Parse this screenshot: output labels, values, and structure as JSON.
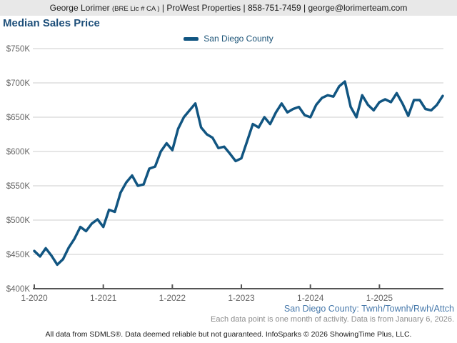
{
  "header": {
    "agent_name": "George Lorimer",
    "license": "(BRE Lic # CA )",
    "contact": "| ProWest Properties | 858-751-7459 | george@lorimerteam.com"
  },
  "title": "Median Sales Price",
  "legend": {
    "label": "San Diego County"
  },
  "chart_data": {
    "type": "line",
    "title": "Median Sales Price",
    "unit": "USD thousands",
    "ylim": [
      400,
      750
    ],
    "grid": "horizontal",
    "legend_position": "top-center",
    "x": [
      "1-2020",
      "2-2020",
      "3-2020",
      "4-2020",
      "5-2020",
      "6-2020",
      "7-2020",
      "8-2020",
      "9-2020",
      "10-2020",
      "11-2020",
      "12-2020",
      "1-2021",
      "2-2021",
      "3-2021",
      "4-2021",
      "5-2021",
      "6-2021",
      "7-2021",
      "8-2021",
      "9-2021",
      "10-2021",
      "11-2021",
      "12-2021",
      "1-2022",
      "2-2022",
      "3-2022",
      "4-2022",
      "5-2022",
      "6-2022",
      "7-2022",
      "8-2022",
      "9-2022",
      "10-2022",
      "11-2022",
      "12-2022",
      "1-2023",
      "2-2023",
      "3-2023",
      "4-2023",
      "5-2023",
      "6-2023",
      "7-2023",
      "8-2023",
      "9-2023",
      "10-2023",
      "11-2023",
      "12-2023",
      "1-2024",
      "2-2024",
      "3-2024",
      "4-2024",
      "5-2024",
      "6-2024",
      "7-2024",
      "8-2024",
      "9-2024",
      "10-2024",
      "11-2024",
      "12-2024",
      "1-2025",
      "2-2025",
      "3-2025",
      "4-2025",
      "5-2025",
      "6-2025",
      "7-2025",
      "8-2025",
      "9-2025",
      "10-2025",
      "11-2025",
      "12-2025"
    ],
    "series": [
      {
        "name": "San Diego County",
        "color": "#115581",
        "values": [
          455,
          447,
          459,
          448,
          435,
          443,
          460,
          473,
          490,
          484,
          495,
          501,
          490,
          515,
          512,
          540,
          555,
          565,
          550,
          552,
          575,
          578,
          600,
          612,
          602,
          633,
          650,
          660,
          670,
          635,
          625,
          620,
          605,
          607,
          597,
          586,
          590,
          615,
          640,
          635,
          650,
          640,
          657,
          670,
          657,
          662,
          665,
          653,
          650,
          668,
          678,
          682,
          680,
          695,
          702,
          665,
          650,
          682,
          668,
          660,
          672,
          676,
          672,
          685,
          670,
          652,
          675,
          675,
          662,
          660,
          668,
          681
        ]
      }
    ],
    "y_tick_values": [
      400,
      450,
      500,
      550,
      600,
      650,
      700,
      750
    ],
    "y_tick_labels": [
      "$400K",
      "$450K",
      "$500K",
      "$550K",
      "$600K",
      "$650K",
      "$700K",
      "$750K"
    ],
    "x_tick_indices": [
      0,
      12,
      24,
      36,
      48,
      60
    ],
    "x_tick_labels": [
      "1-2020",
      "1-2021",
      "1-2022",
      "1-2023",
      "1-2024",
      "1-2025"
    ],
    "style": {
      "grid_color": "#cccccc",
      "axis_color": "#555555",
      "tick_label_color": "#666666"
    }
  },
  "footnotes": {
    "series_note": "San Diego County: Twnh/Townh/Rwh/Attch",
    "data_note": "Each data point is one month of activity. Data is from January 6, 2026.",
    "disclaimer": "All data from SDMLS®. Data deemed reliable but not guaranteed. InfoSparks © 2026 ShowingTime Plus, LLC."
  }
}
